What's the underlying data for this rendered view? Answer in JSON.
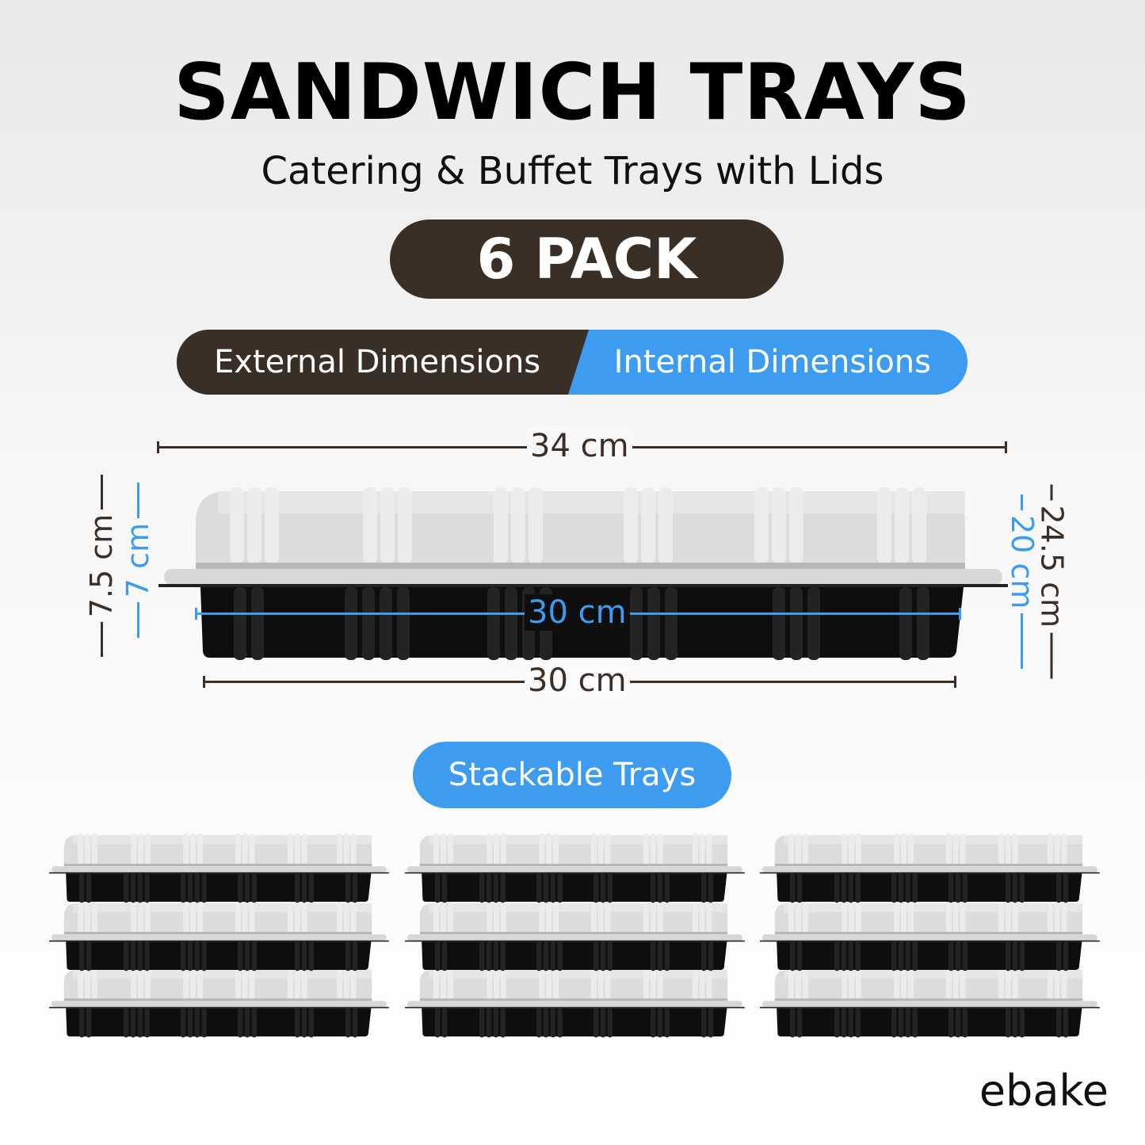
{
  "title": "SANDWICH TRAYS",
  "subtitle": "Catering & Buffet Trays with Lids",
  "pack": "6 PACK",
  "tabs": {
    "external": "External Dimensions",
    "internal": "Internal Dimensions"
  },
  "dimensions": {
    "external_length": "34 cm",
    "internal_length": "30 cm",
    "base_length": "30 cm",
    "external_height": "7.5 cm",
    "internal_height": "7 cm",
    "external_width": "24.5 cm",
    "internal_width": "20 cm"
  },
  "stackable_label": "Stackable Trays",
  "brand": "ebake",
  "colors": {
    "dark": "#3a2f27",
    "blue": "#3d9bf0"
  }
}
